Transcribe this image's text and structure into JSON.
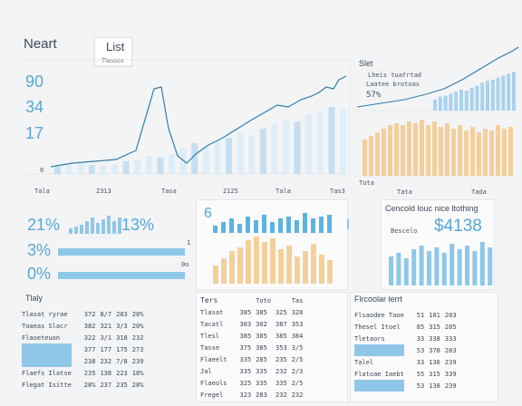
{
  "header": {
    "title": "Neart",
    "dropdown_label": "List",
    "dropdown_sub": "Tlasoos"
  },
  "main_chart": {
    "y_ticks": [
      "90",
      "34",
      "17",
      "0"
    ],
    "x_ticks": [
      "Tala",
      "2313",
      "Tasa",
      "2125",
      "Tala",
      "Tas3"
    ]
  },
  "side_chart": {
    "title": "Slet",
    "legend": [
      "Lheis tuafrtad",
      "Laatee brotoas",
      "57%"
    ],
    "x_ticks": [
      "Tota",
      "Tata",
      "Tada"
    ]
  },
  "kpi_panel": {
    "pct1": "21%",
    "pct2": "13%",
    "pct3": "3%",
    "pct4": "0%",
    "scale_hi": "1",
    "scale_lo": "0o"
  },
  "mid_panel": {
    "badge": "6"
  },
  "right_panel": {
    "title": "Cencold louc nice ltothing",
    "value": "$4138",
    "caption": "Bescelo"
  },
  "table1": {
    "title": "Tlaly",
    "rows": [
      [
        "Tlasat ryrae",
        "372",
        "8/7",
        "283",
        "20%"
      ],
      [
        "Toaeas Slacr",
        "382",
        "321",
        "3/3",
        "20%"
      ],
      [
        "Flaoeteuon",
        "322",
        "3/1",
        "318",
        "232"
      ],
      [
        "",
        "377",
        "177",
        "175",
        "273"
      ],
      [
        "",
        "238",
        "232",
        "7/8",
        "239"
      ],
      [
        "Flaefs Ilatse",
        "235",
        "138",
        "223",
        "18%"
      ],
      [
        "Flegat Isitte",
        "28%",
        "237",
        "235",
        "28%"
      ]
    ]
  },
  "table2": {
    "title": "Ters",
    "headers": [
      "",
      "",
      "Toto",
      "",
      "Tas"
    ],
    "rows": [
      [
        "Tlasat",
        "385",
        "385",
        "325",
        "328"
      ],
      [
        "Tacatl",
        "383",
        "302",
        "387",
        "353"
      ],
      [
        "Tlesl",
        "385",
        "385",
        "385",
        "384"
      ],
      [
        "Tasse",
        "375",
        "385",
        "353",
        "3/5"
      ],
      [
        "Flaeelt",
        "335",
        "285",
        "235",
        "2/5"
      ],
      [
        "Jal",
        "335",
        "335",
        "232",
        "2/3"
      ],
      [
        "Flaeols",
        "325",
        "335",
        "335",
        "2/5"
      ],
      [
        "Fregel",
        "323",
        "283",
        "232",
        "232"
      ]
    ]
  },
  "table3": {
    "title": "Flrcoolar lerrt",
    "rows": [
      [
        "Flsaodee Taoe",
        "51",
        "181",
        "203"
      ],
      [
        "Thesel Itoel",
        "85",
        "315",
        "205"
      ],
      [
        "Tletaors",
        "33",
        "338",
        "333"
      ],
      [
        "",
        "53",
        "378",
        "203"
      ],
      [
        "Talel",
        "33",
        "136",
        "239"
      ],
      [
        "Flatoae Iaebt",
        "55",
        "315",
        "339"
      ],
      [
        "",
        "53",
        "138",
        "239"
      ]
    ]
  },
  "colors": {
    "accent": "#56a7d3",
    "bar_blue": "#8fc7e8",
    "bar_light": "#d5e8f4",
    "bar_orange": "#f5cf9a",
    "line": "#2f7fa8"
  }
}
